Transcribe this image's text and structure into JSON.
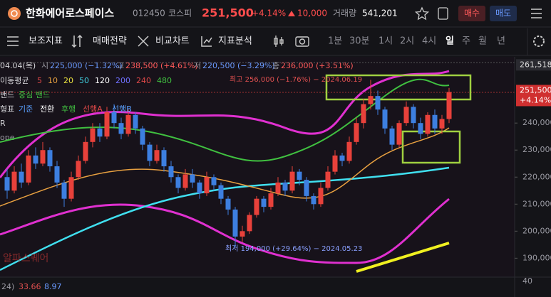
{
  "header": {
    "name": "한화에어로스페이스",
    "code": "012450",
    "market": "코스피",
    "price": "251,500",
    "change_pct": "+4.14%",
    "change": "10,000",
    "volume_label": "거래량",
    "volume": "541,201",
    "buy": "매수",
    "sell": "매도"
  },
  "toolbar": [
    "보조지표",
    "매매전략",
    "비교차트",
    "지표분석"
  ],
  "timeframes": [
    "1분",
    "30분",
    "1시",
    "2시",
    "4시",
    "일",
    "주",
    "월",
    "년"
  ],
  "active_timeframe": 5,
  "info": {
    "date": "04.04(목)",
    "open_label": "시",
    "open": "225,000 (−1.32%)",
    "high_label": "고",
    "high": "238,500 (+4.61%)",
    "low_label": "저",
    "low": "220,500 (−3.29%)",
    "close_label": "종",
    "close": "236,000 (+3.51%)"
  },
  "ma": {
    "label": "이동평균",
    "periods": [
      "5",
      "10",
      "20",
      "50",
      "120",
      "200",
      "240",
      "480"
    ],
    "colors": [
      "#e04848",
      "#e8a040",
      "#e8e040",
      "#40d0e0",
      "#ffffff",
      "#7070ff",
      "#e04848",
      "#40c040"
    ]
  },
  "bollinger": {
    "label": "밴드",
    "sub": "중심 밴드"
  },
  "ichimoku": {
    "label": "형표",
    "items": [
      "기준",
      "전환",
      "후행",
      "선행A",
      "선행B"
    ],
    "colors": [
      "#5aa0ff",
      "#ffffff",
      "#40c040",
      "#e04848",
      "#5aa0ff"
    ]
  },
  "misc_labels": [
    "R",
    "ope"
  ],
  "annotations": {
    "high": "최고 256,000 (−1.76%) − 2024.06.19",
    "low": "최저 194,000 (+29.64%) − 2024.05.23"
  },
  "watermark": "알파스퀘어",
  "price_axis": {
    "ylim": [
      183000,
      264500
    ],
    "yticks": [
      {
        "value": 240000,
        "label": "240,000"
      },
      {
        "value": 230000,
        "label": "230,000"
      },
      {
        "value": 220000,
        "label": "220,000"
      },
      {
        "value": 210000,
        "label": "210,000"
      },
      {
        "value": 200000,
        "label": "200,000"
      },
      {
        "value": 190000,
        "label": "190,000"
      }
    ],
    "top_marker": {
      "value": 261518,
      "label": "261,518"
    },
    "last_marker": {
      "value": 251500,
      "label": "251,500",
      "pct": "+4.14%"
    }
  },
  "bottom_strip": {
    "items": [
      "24)",
      "33.66",
      "8.97"
    ],
    "axis_label": "40"
  },
  "candles": [
    [
      220000,
      223000,
      212000,
      215000
    ],
    [
      215000,
      224000,
      214000,
      222000
    ],
    [
      222000,
      225000,
      216000,
      218000
    ],
    [
      218000,
      230000,
      217000,
      228000
    ],
    [
      228000,
      231000,
      223000,
      225000
    ],
    [
      225000,
      233000,
      224000,
      230000
    ],
    [
      230000,
      231000,
      222000,
      224000
    ],
    [
      224000,
      226000,
      216000,
      218000
    ],
    [
      218000,
      219000,
      209000,
      212000
    ],
    [
      212000,
      222000,
      211000,
      220000
    ],
    [
      220000,
      228000,
      219000,
      226000
    ],
    [
      226000,
      235000,
      225000,
      233000
    ],
    [
      233000,
      240000,
      231000,
      238000
    ],
    [
      238000,
      240000,
      233000,
      235000
    ],
    [
      235000,
      246000,
      234000,
      244000
    ],
    [
      244000,
      247000,
      238000,
      240000
    ],
    [
      240000,
      242000,
      234000,
      236000
    ],
    [
      236000,
      245000,
      235000,
      243000
    ],
    [
      243000,
      244000,
      236000,
      238000
    ],
    [
      238000,
      239000,
      230000,
      232000
    ],
    [
      232000,
      233000,
      224000,
      226000
    ],
    [
      226000,
      232000,
      225000,
      230000
    ],
    [
      230000,
      231000,
      222000,
      224000
    ],
    [
      224000,
      226000,
      218000,
      220000
    ],
    [
      220000,
      221000,
      214000,
      216000
    ],
    [
      216000,
      223000,
      215000,
      221000
    ],
    [
      221000,
      223000,
      216000,
      218000
    ],
    [
      218000,
      219000,
      212000,
      214000
    ],
    [
      214000,
      222000,
      213000,
      220000
    ],
    [
      220000,
      221000,
      215000,
      217000
    ],
    [
      217000,
      218000,
      210000,
      212000
    ],
    [
      212000,
      213000,
      206000,
      208000
    ],
    [
      208000,
      209000,
      194000,
      198000
    ],
    [
      198000,
      202000,
      196000,
      200000
    ],
    [
      200000,
      207000,
      199000,
      206000
    ],
    [
      206000,
      213000,
      205000,
      212000
    ],
    [
      212000,
      213000,
      207000,
      209000
    ],
    [
      209000,
      216000,
      208000,
      214000
    ],
    [
      214000,
      220000,
      213000,
      218000
    ],
    [
      218000,
      219000,
      213000,
      215000
    ],
    [
      215000,
      224000,
      214000,
      222000
    ],
    [
      222000,
      223000,
      217000,
      219000
    ],
    [
      219000,
      220000,
      211000,
      213000
    ],
    [
      213000,
      214000,
      208000,
      210000
    ],
    [
      210000,
      218000,
      209000,
      216000
    ],
    [
      216000,
      224000,
      215000,
      222000
    ],
    [
      222000,
      230000,
      221000,
      228000
    ],
    [
      228000,
      229000,
      224000,
      226000
    ],
    [
      226000,
      235000,
      225000,
      233000
    ],
    [
      233000,
      242000,
      232000,
      240000
    ],
    [
      240000,
      249000,
      238000,
      247000
    ],
    [
      247000,
      256000,
      245000,
      250000
    ],
    [
      250000,
      252000,
      243000,
      245000
    ],
    [
      245000,
      246000,
      236000,
      238000
    ],
    [
      238000,
      239000,
      230000,
      232000
    ],
    [
      232000,
      241000,
      231000,
      240000
    ],
    [
      240000,
      248000,
      239000,
      246000
    ],
    [
      246000,
      247000,
      238000,
      240000
    ],
    [
      240000,
      242000,
      234000,
      236000
    ],
    [
      236000,
      244000,
      235000,
      243000
    ],
    [
      243000,
      245000,
      236000,
      238000
    ],
    [
      238000,
      243000,
      236000,
      241500
    ],
    [
      241500,
      253000,
      240000,
      251500
    ]
  ]
}
